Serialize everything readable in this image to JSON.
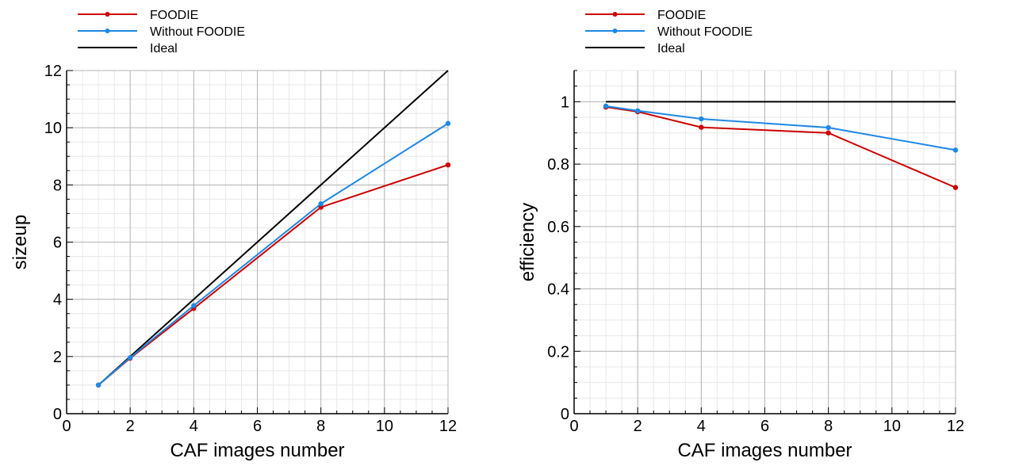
{
  "chart_data": [
    {
      "type": "line",
      "title": "",
      "xlabel": "CAF images number",
      "ylabel": "sizeup",
      "xlim": [
        0,
        12
      ],
      "ylim": [
        0,
        12
      ],
      "xticks": [
        0,
        2,
        4,
        6,
        8,
        10,
        12
      ],
      "yticks": [
        0,
        2,
        4,
        6,
        8,
        10,
        12
      ],
      "ytick_labels": [
        "0",
        "2",
        "4",
        "6",
        "8",
        "10",
        "12"
      ],
      "grid": true,
      "legend_position": "top-left",
      "series": [
        {
          "name": "FOODIE",
          "color": "#cc0000",
          "markers": true,
          "x": [
            1,
            2,
            4,
            8,
            12
          ],
          "y": [
            1.0,
            1.94,
            3.68,
            7.22,
            8.7
          ]
        },
        {
          "name": "Without FOODIE",
          "color": "#1e88e5",
          "markers": true,
          "x": [
            1,
            2,
            4,
            8,
            12
          ],
          "y": [
            1.0,
            1.96,
            3.78,
            7.34,
            10.15
          ]
        },
        {
          "name": "Ideal",
          "color": "#000000",
          "markers": false,
          "x": [
            1,
            12
          ],
          "y": [
            1,
            12
          ]
        }
      ]
    },
    {
      "type": "line",
      "title": "",
      "xlabel": "CAF images number",
      "ylabel": "efficiency",
      "xlim": [
        0,
        12
      ],
      "ylim": [
        0,
        1.1
      ],
      "xticks": [
        0,
        2,
        4,
        6,
        8,
        10,
        12
      ],
      "yticks": [
        0,
        0.2,
        0.4,
        0.6,
        0.8,
        1
      ],
      "ytick_labels": [
        "0",
        "0.2",
        "0.4",
        "0.6",
        "0.8",
        "1"
      ],
      "grid": true,
      "legend_position": "top-left",
      "series": [
        {
          "name": "FOODIE",
          "color": "#cc0000",
          "markers": true,
          "x": [
            1,
            2,
            4,
            8,
            12
          ],
          "y": [
            0.983,
            0.968,
            0.918,
            0.9,
            0.725
          ]
        },
        {
          "name": "Without FOODIE",
          "color": "#1e88e5",
          "markers": true,
          "x": [
            1,
            2,
            4,
            8,
            12
          ],
          "y": [
            0.986,
            0.971,
            0.945,
            0.917,
            0.845
          ]
        },
        {
          "name": "Ideal",
          "color": "#000000",
          "markers": false,
          "x": [
            1,
            12
          ],
          "y": [
            1,
            1
          ]
        }
      ]
    }
  ]
}
